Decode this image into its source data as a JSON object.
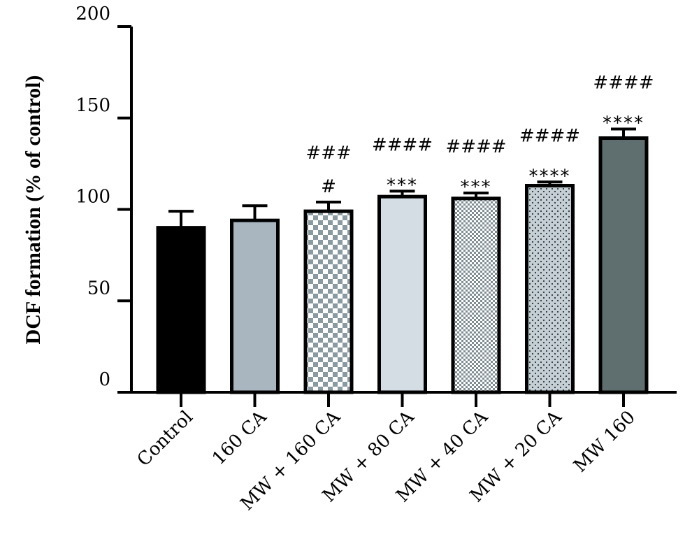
{
  "chart_data": {
    "type": "bar",
    "ylabel": "DCF formation (% of control)",
    "xlabel": "",
    "ylim": [
      0,
      200
    ],
    "yticks": [
      0,
      50,
      100,
      150,
      200
    ],
    "categories": [
      "Control",
      "160 CA",
      "MW + 160 CA",
      "MW + 80 CA",
      "MW + 40 CA",
      "MW + 20 CA",
      "MW 160"
    ],
    "values": [
      90,
      94,
      99,
      107,
      106,
      113,
      139
    ],
    "errors": [
      9,
      8,
      5,
      3,
      3,
      2,
      5
    ],
    "stars": [
      "",
      "",
      "",
      "***",
      "***",
      "****",
      "****"
    ],
    "hashes": [
      "",
      "",
      "#|###",
      "####",
      "####",
      "####",
      "####"
    ],
    "bar_fills": [
      "#000000",
      "#a9b5bf",
      "checker-large",
      "#d5dde4",
      "checker-small",
      "dotted",
      "#5f6f70"
    ]
  }
}
